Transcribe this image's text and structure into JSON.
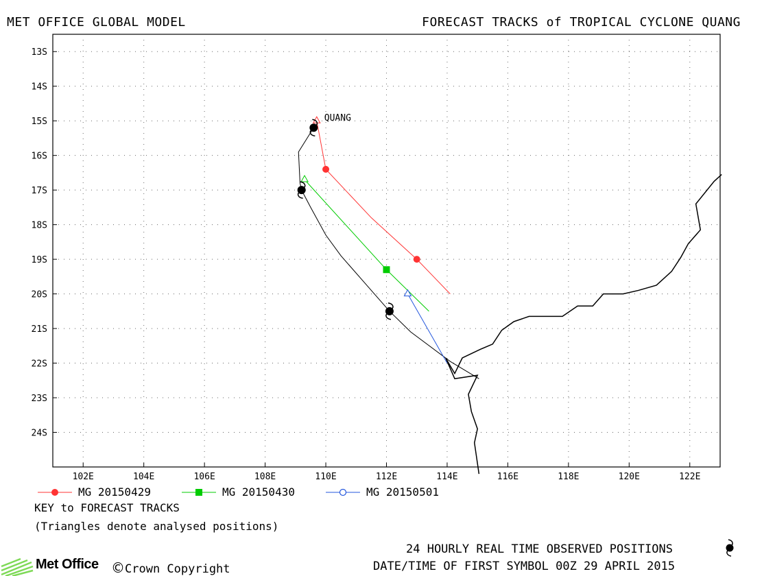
{
  "header": {
    "left_title": "MET OFFICE GLOBAL MODEL",
    "right_title": "FORECAST TRACKS of TROPICAL CYCLONE QUANG"
  },
  "map": {
    "lon_range": [
      101.0,
      123.0
    ],
    "lat_range": [
      -25.0,
      -12.5
    ],
    "lon_ticks": [
      "102E",
      "104E",
      "106E",
      "108E",
      "110E",
      "112E",
      "114E",
      "116E",
      "118E",
      "120E",
      "122E"
    ],
    "lat_ticks": [
      "13S",
      "14S",
      "15S",
      "16S",
      "17S",
      "18S",
      "19S",
      "20S",
      "21S",
      "22S",
      "23S",
      "24S"
    ],
    "grid": "dotted",
    "storm_label": "QUANG",
    "tracks": [
      {
        "name": "MG 20150429",
        "color": "#ff3333",
        "marker": "circle-filled",
        "points": [
          [
            109.7,
            -15.0
          ],
          [
            110.0,
            -16.4
          ],
          [
            111.5,
            -17.8
          ],
          [
            113.0,
            -19.0
          ],
          [
            114.1,
            -20.0
          ]
        ],
        "markers": [
          [
            110.0,
            -16.4
          ],
          [
            113.0,
            -19.0
          ]
        ]
      },
      {
        "name": "MG 20150430",
        "color": "#00cc00",
        "marker": "square-filled",
        "points": [
          [
            109.3,
            -16.7
          ],
          [
            112.0,
            -19.3
          ],
          [
            113.4,
            -20.5
          ]
        ],
        "markers": [
          [
            112.0,
            -19.3
          ]
        ]
      },
      {
        "name": "MG 20150501",
        "color": "#2255dd",
        "marker": "circle-open",
        "points": [
          [
            112.7,
            -20.0
          ],
          [
            114.0,
            -22.0
          ]
        ],
        "markers": []
      }
    ],
    "analysed_positions": [
      [
        109.7,
        -15.0
      ],
      [
        109.3,
        -16.7
      ],
      [
        112.7,
        -20.0
      ]
    ],
    "observed_positions": [
      [
        109.6,
        -15.2
      ],
      [
        109.2,
        -17.0
      ],
      [
        112.1,
        -20.5
      ]
    ]
  },
  "legend": [
    {
      "label": "MG 20150429",
      "color": "#ff3333",
      "marker": "circle-filled"
    },
    {
      "label": "MG 20150430",
      "color": "#00cc00",
      "marker": "square-filled"
    },
    {
      "label": "MG 20150501",
      "color": "#2255dd",
      "marker": "circle-open"
    }
  ],
  "notes": {
    "key": "KEY to FORECAST TRACKS",
    "triangles": "(Triangles denote analysed positions)"
  },
  "footer": {
    "observed": "24 HOURLY REAL TIME OBSERVED POSITIONS",
    "datetime": "DATE/TIME OF FIRST SYMBOL 00Z 29 APRIL 2015",
    "logo_text": "Met Office",
    "copyright_symbol": "©",
    "copyright": "Crown Copyright"
  }
}
